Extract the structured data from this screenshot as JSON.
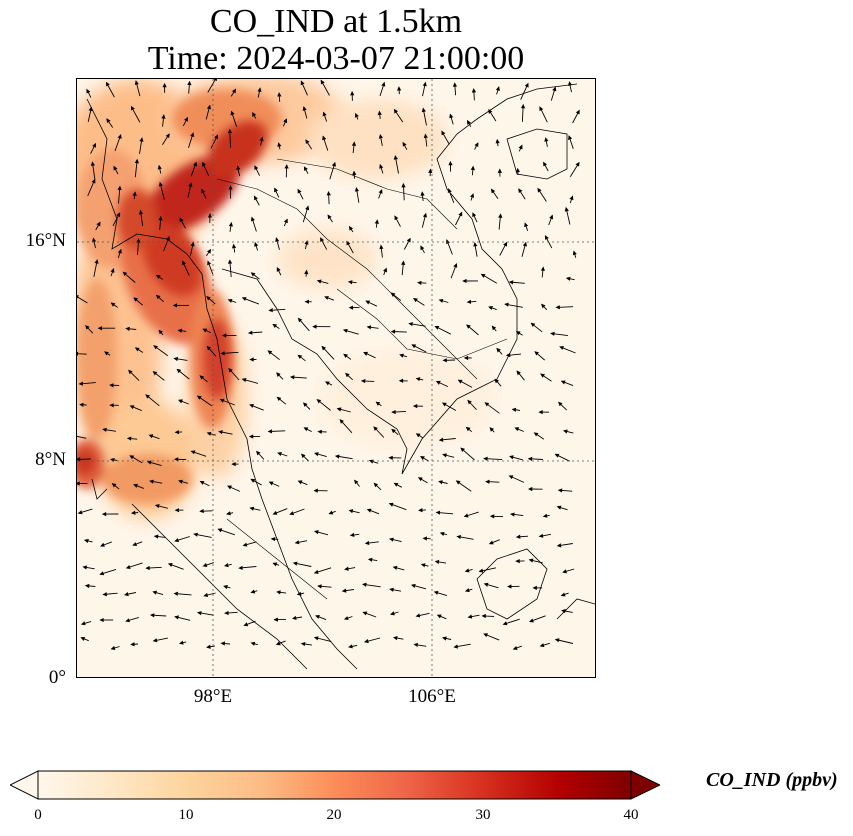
{
  "title": {
    "line1": "CO_IND at 1.5km",
    "line2": "Time: 2024-03-07 21:00:00"
  },
  "map": {
    "lon_range": [
      93,
      112
    ],
    "lat_range": [
      0,
      22
    ],
    "lat_ticks": [
      {
        "value": 0,
        "label": "0°"
      },
      {
        "value": 8,
        "label": "8°N"
      },
      {
        "value": 16,
        "label": "16°N"
      }
    ],
    "lon_ticks": [
      {
        "value": 98,
        "label": "98°E"
      },
      {
        "value": 106,
        "label": "106°E"
      }
    ],
    "gridlines": "dotted",
    "vector_field": "wind arrows",
    "colormap": "OrRd"
  },
  "colorbar": {
    "label": "CO_IND (ppbv)",
    "min": 0,
    "max": 40,
    "extend": "both",
    "ticks": [
      "0",
      "10",
      "20",
      "30",
      "40"
    ],
    "colors": [
      "#fff7ec",
      "#fee8c8",
      "#fdd49e",
      "#fdbb84",
      "#fc8d59",
      "#ef6548",
      "#d7301f",
      "#b30000",
      "#7f0000"
    ]
  }
}
